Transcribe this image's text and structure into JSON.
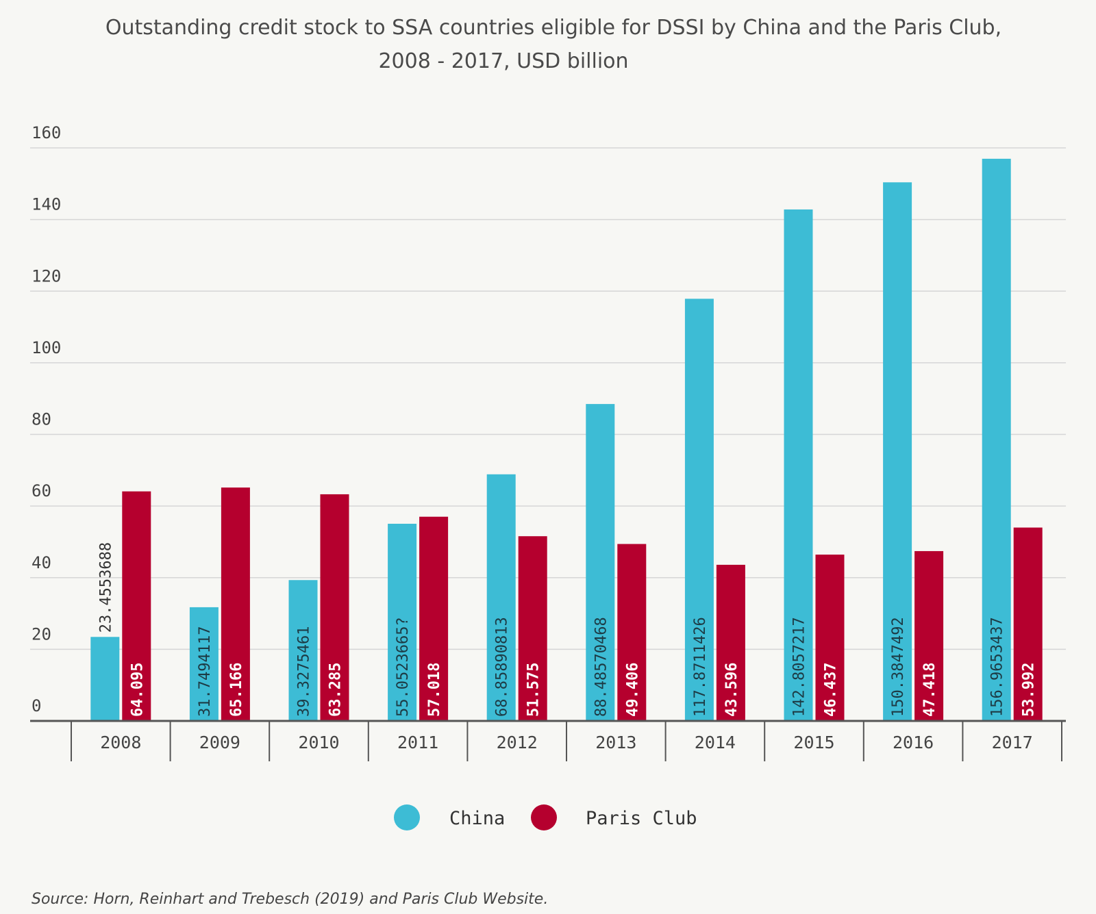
{
  "chart_data": {
    "type": "bar",
    "title": "Outstanding credit stock to SSA countries eligible for DSSI by China and the Paris Club,",
    "subtitle": "2008 - 2017, USD billion",
    "categories": [
      "2008",
      "2009",
      "2010",
      "2011",
      "2012",
      "2013",
      "2014",
      "2015",
      "2016",
      "2017"
    ],
    "series": [
      {
        "name": "China",
        "color": "#3dbcd5",
        "values": [
          23.4553688,
          31.7494117,
          39.3275461,
          55.0523665,
          68.8589081,
          88.4857047,
          117.871143,
          142.805722,
          150.384749,
          156.965344
        ],
        "labels": [
          "23.4553688",
          "31.7494117",
          "39.3275461",
          "55.0523665?",
          "68.85890813",
          "88.48570468",
          "117.8711426",
          "142.8057217",
          "150.3847492",
          "156.9653437"
        ]
      },
      {
        "name": "Paris Club",
        "color": "#b5002e",
        "values": [
          64.095,
          65.166,
          63.285,
          57.018,
          51.575,
          49.406,
          43.596,
          46.437,
          47.418,
          53.992
        ],
        "labels": [
          "64.095",
          "65.166",
          "63.285",
          "57.018",
          "51.575",
          "49.406",
          "43.596",
          "46.437",
          "47.418",
          "53.992"
        ]
      }
    ],
    "ylim": [
      0,
      160
    ],
    "yticks": [
      "0",
      "20",
      "40",
      "60",
      "80",
      "100",
      "120",
      "140",
      "160"
    ],
    "grid": true,
    "legend_position": "bottom-center",
    "xlabel": "",
    "ylabel": ""
  },
  "source": "Source: Horn, Reinhart and Trebesch (2019)  and Paris Club Website."
}
